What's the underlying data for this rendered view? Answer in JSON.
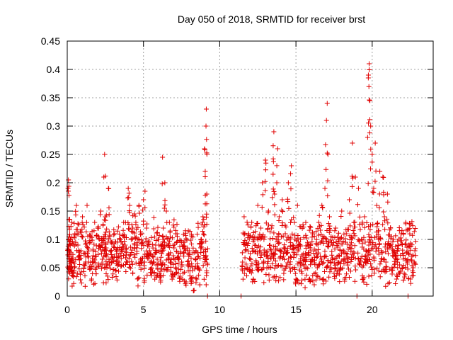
{
  "chart_data": {
    "type": "scatter",
    "title": "Day 050 of 2018, SRMTID for receiver brst",
    "xlabel": "GPS time / hours",
    "ylabel": "SRMTID / TECUs",
    "xlim": [
      0,
      24
    ],
    "ylim": [
      0,
      0.45
    ],
    "xticks": [
      0,
      5,
      10,
      15,
      20
    ],
    "yticks": [
      0,
      0.05,
      0.1,
      0.15,
      0.2,
      0.25,
      0.3,
      0.35,
      0.4,
      0.45
    ],
    "grid": true,
    "marker": "+",
    "series_color": "#e00000",
    "gaps_hours": [
      [
        9.25,
        11.45
      ],
      [
        22.9,
        24
      ]
    ],
    "points": [
      [
        0.05,
        0.19
      ],
      [
        0.08,
        0.205
      ],
      [
        0.1,
        0.135
      ],
      [
        0.12,
        0.08
      ],
      [
        0.15,
        0.05
      ],
      [
        0.2,
        0.1
      ],
      [
        0.25,
        0.07
      ],
      [
        0.3,
        0.13
      ],
      [
        0.35,
        0.04
      ],
      [
        0.42,
        0.06
      ],
      [
        0.5,
        0.11
      ],
      [
        0.6,
        0.16
      ],
      [
        0.7,
        0.09
      ],
      [
        0.8,
        0.065
      ],
      [
        0.9,
        0.08
      ],
      [
        1.0,
        0.14
      ],
      [
        1.1,
        0.055
      ],
      [
        1.2,
        0.075
      ],
      [
        1.3,
        0.16
      ],
      [
        1.4,
        0.06
      ],
      [
        1.5,
        0.095
      ],
      [
        1.6,
        0.03
      ],
      [
        1.7,
        0.08
      ],
      [
        1.8,
        0.13
      ],
      [
        1.9,
        0.07
      ],
      [
        2.0,
        0.12
      ],
      [
        2.1,
        0.1
      ],
      [
        2.2,
        0.15
      ],
      [
        2.3,
        0.065
      ],
      [
        2.4,
        0.21
      ],
      [
        2.45,
        0.25
      ],
      [
        2.5,
        0.14
      ],
      [
        2.55,
        0.085
      ],
      [
        2.6,
        0.05
      ],
      [
        2.7,
        0.19
      ],
      [
        2.8,
        0.06
      ],
      [
        2.9,
        0.095
      ],
      [
        3.0,
        0.07
      ],
      [
        3.1,
        0.11
      ],
      [
        3.2,
        0.045
      ],
      [
        3.3,
        0.085
      ],
      [
        3.4,
        0.06
      ],
      [
        3.5,
        0.1
      ],
      [
        3.6,
        0.08
      ],
      [
        3.7,
        0.13
      ],
      [
        3.8,
        0.09
      ],
      [
        3.9,
        0.06
      ],
      [
        4.0,
        0.19
      ],
      [
        4.1,
        0.16
      ],
      [
        4.2,
        0.1
      ],
      [
        4.3,
        0.12
      ],
      [
        4.4,
        0.145
      ],
      [
        4.5,
        0.13
      ],
      [
        4.6,
        0.09
      ],
      [
        4.7,
        0.16
      ],
      [
        4.8,
        0.065
      ],
      [
        4.9,
        0.11
      ],
      [
        5.0,
        0.17
      ],
      [
        5.1,
        0.185
      ],
      [
        5.2,
        0.12
      ],
      [
        5.3,
        0.095
      ],
      [
        5.4,
        0.08
      ],
      [
        5.5,
        0.05
      ],
      [
        5.6,
        0.07
      ],
      [
        5.7,
        0.04
      ],
      [
        5.8,
        0.09
      ],
      [
        5.9,
        0.065
      ],
      [
        6.0,
        0.1
      ],
      [
        6.1,
        0.035
      ],
      [
        6.2,
        0.075
      ],
      [
        6.25,
        0.245
      ],
      [
        6.3,
        0.12
      ],
      [
        6.4,
        0.2
      ],
      [
        6.5,
        0.15
      ],
      [
        6.6,
        0.09
      ],
      [
        6.7,
        0.13
      ],
      [
        6.8,
        0.06
      ],
      [
        6.9,
        0.04
      ],
      [
        7.0,
        0.085
      ],
      [
        7.1,
        0.05
      ],
      [
        7.2,
        0.11
      ],
      [
        7.3,
        0.07
      ],
      [
        7.4,
        0.035
      ],
      [
        7.5,
        0.06
      ],
      [
        7.6,
        0.04
      ],
      [
        7.7,
        0.095
      ],
      [
        7.8,
        0.025
      ],
      [
        7.9,
        0.055
      ],
      [
        8.0,
        0.08
      ],
      [
        8.1,
        0.03
      ],
      [
        8.2,
        0.045
      ],
      [
        8.3,
        0.01
      ],
      [
        8.4,
        0.065
      ],
      [
        8.5,
        0.03
      ],
      [
        8.6,
        0.05
      ],
      [
        8.7,
        0.02
      ],
      [
        8.8,
        0.1
      ],
      [
        8.9,
        0.14
      ],
      [
        9.0,
        0.26
      ],
      [
        9.05,
        0.22
      ],
      [
        9.1,
        0.3
      ],
      [
        9.12,
        0.33
      ],
      [
        9.15,
        0.18
      ],
      [
        9.2,
        0.0
      ],
      [
        11.4,
        0.0
      ],
      [
        11.5,
        0.06
      ],
      [
        11.6,
        0.14
      ],
      [
        11.7,
        0.09
      ],
      [
        11.8,
        0.05
      ],
      [
        11.9,
        0.11
      ],
      [
        12.0,
        0.075
      ],
      [
        12.1,
        0.13
      ],
      [
        12.2,
        0.03
      ],
      [
        12.3,
        0.09
      ],
      [
        12.4,
        0.06
      ],
      [
        12.5,
        0.16
      ],
      [
        12.6,
        0.08
      ],
      [
        12.7,
        0.12
      ],
      [
        12.8,
        0.2
      ],
      [
        12.9,
        0.1
      ],
      [
        13.0,
        0.24
      ],
      [
        13.1,
        0.07
      ],
      [
        13.2,
        0.15
      ],
      [
        13.3,
        0.09
      ],
      [
        13.4,
        0.12
      ],
      [
        13.5,
        0.215
      ],
      [
        13.55,
        0.29
      ],
      [
        13.6,
        0.18
      ],
      [
        13.7,
        0.1
      ],
      [
        13.8,
        0.26
      ],
      [
        13.9,
        0.14
      ],
      [
        14.0,
        0.07
      ],
      [
        14.1,
        0.17
      ],
      [
        14.2,
        0.04
      ],
      [
        14.3,
        0.11
      ],
      [
        14.4,
        0.08
      ],
      [
        14.5,
        0.2
      ],
      [
        14.6,
        0.05
      ],
      [
        14.7,
        0.23
      ],
      [
        14.8,
        0.09
      ],
      [
        14.9,
        0.13
      ],
      [
        15.0,
        0.03
      ],
      [
        15.1,
        0.16
      ],
      [
        15.2,
        0.06
      ],
      [
        15.3,
        0.1
      ],
      [
        15.4,
        0.04
      ],
      [
        15.5,
        0.075
      ],
      [
        15.6,
        0.015
      ],
      [
        15.7,
        0.05
      ],
      [
        15.8,
        0.09
      ],
      [
        15.9,
        0.03
      ],
      [
        16.0,
        0.065
      ],
      [
        16.1,
        0.11
      ],
      [
        16.2,
        0.02
      ],
      [
        16.3,
        0.08
      ],
      [
        16.4,
        0.05
      ],
      [
        16.5,
        0.13
      ],
      [
        16.6,
        0.07
      ],
      [
        16.7,
        0.16
      ],
      [
        16.8,
        0.03
      ],
      [
        16.9,
        0.19
      ],
      [
        17.0,
        0.31
      ],
      [
        17.05,
        0.34
      ],
      [
        17.1,
        0.25
      ],
      [
        17.2,
        0.14
      ],
      [
        17.3,
        0.06
      ],
      [
        17.4,
        0.09
      ],
      [
        17.5,
        0.04
      ],
      [
        17.6,
        0.12
      ],
      [
        17.7,
        0.07
      ],
      [
        17.8,
        0.1
      ],
      [
        17.9,
        0.05
      ],
      [
        18.0,
        0.15
      ],
      [
        18.1,
        0.08
      ],
      [
        18.2,
        0.03
      ],
      [
        18.3,
        0.11
      ],
      [
        18.4,
        0.06
      ],
      [
        18.5,
        0.17
      ],
      [
        18.6,
        0.09
      ],
      [
        18.7,
        0.27
      ],
      [
        18.8,
        0.13
      ],
      [
        18.9,
        0.21
      ],
      [
        19.0,
        0.0
      ],
      [
        19.1,
        0.19
      ],
      [
        19.2,
        0.06
      ],
      [
        19.3,
        0.1
      ],
      [
        19.4,
        0.03
      ],
      [
        19.5,
        0.14
      ],
      [
        19.6,
        0.08
      ],
      [
        19.7,
        0.28
      ],
      [
        19.75,
        0.39
      ],
      [
        19.8,
        0.41
      ],
      [
        19.85,
        0.345
      ],
      [
        19.9,
        0.3
      ],
      [
        20.0,
        0.25
      ],
      [
        20.1,
        0.19
      ],
      [
        20.2,
        0.27
      ],
      [
        20.3,
        0.16
      ],
      [
        20.4,
        0.1
      ],
      [
        20.5,
        0.22
      ],
      [
        20.6,
        0.08
      ],
      [
        20.7,
        0.21
      ],
      [
        20.8,
        0.14
      ],
      [
        20.9,
        0.06
      ],
      [
        21.0,
        0.18
      ],
      [
        21.1,
        0.09
      ],
      [
        21.2,
        0.12
      ],
      [
        21.3,
        0.05
      ],
      [
        21.4,
        0.1
      ],
      [
        21.5,
        0.07
      ],
      [
        21.6,
        0.03
      ],
      [
        21.7,
        0.09
      ],
      [
        21.8,
        0.055
      ],
      [
        21.9,
        0.11
      ],
      [
        22.0,
        0.075
      ],
      [
        22.1,
        0.04
      ],
      [
        22.2,
        0.13
      ],
      [
        22.3,
        0.06
      ],
      [
        22.4,
        0.09
      ],
      [
        22.5,
        0.03
      ],
      [
        22.6,
        0.07
      ],
      [
        22.7,
        0.05
      ],
      [
        22.8,
        0.08
      ],
      [
        22.35,
        0.0
      ]
    ]
  }
}
